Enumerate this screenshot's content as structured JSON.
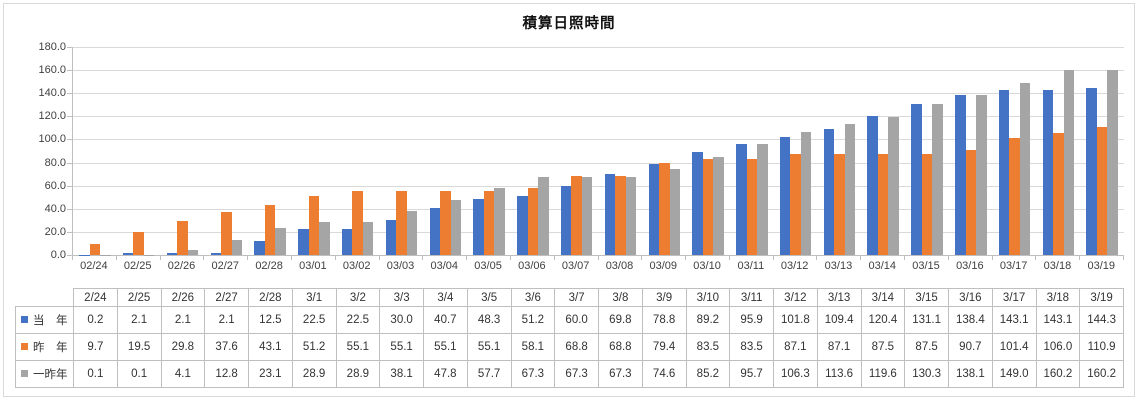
{
  "chart_data": {
    "type": "bar",
    "title": "積算日照時間",
    "xlabel": "",
    "ylabel": "",
    "ylim": [
      0,
      180
    ],
    "ytick_step": 20,
    "ytick_labels": [
      "0.0",
      "20.0",
      "40.0",
      "60.0",
      "80.0",
      "100.0",
      "120.0",
      "140.0",
      "160.0",
      "180.0"
    ],
    "grid": true,
    "legend_position": "table-left",
    "categories": [
      "02/24",
      "02/25",
      "02/26",
      "02/27",
      "02/28",
      "03/01",
      "03/02",
      "03/03",
      "03/04",
      "03/05",
      "03/06",
      "03/07",
      "03/08",
      "03/09",
      "03/10",
      "03/11",
      "03/12",
      "03/13",
      "03/14",
      "03/15",
      "03/16",
      "03/17",
      "03/18",
      "03/19"
    ],
    "table_categories": [
      "2/24",
      "2/25",
      "2/26",
      "2/27",
      "2/28",
      "3/1",
      "3/2",
      "3/3",
      "3/4",
      "3/5",
      "3/6",
      "3/7",
      "3/8",
      "3/9",
      "3/10",
      "3/11",
      "3/12",
      "3/13",
      "3/14",
      "3/15",
      "3/16",
      "3/17",
      "3/18",
      "3/19"
    ],
    "series": [
      {
        "id": "this-year",
        "name": "当　年",
        "color": "#4472C4",
        "values": [
          0.2,
          2.1,
          2.1,
          2.1,
          12.5,
          22.5,
          22.5,
          30.0,
          40.7,
          48.3,
          51.2,
          60.0,
          69.8,
          78.8,
          89.2,
          95.9,
          101.8,
          109.4,
          120.4,
          131.1,
          138.4,
          143.1,
          143.1,
          144.3
        ]
      },
      {
        "id": "last-year",
        "name": "昨　年",
        "color": "#ED7D31",
        "values": [
          9.7,
          19.5,
          29.8,
          37.6,
          43.1,
          51.2,
          55.1,
          55.1,
          55.1,
          55.1,
          58.1,
          68.8,
          68.8,
          79.4,
          83.5,
          83.5,
          87.1,
          87.1,
          87.5,
          87.5,
          90.7,
          101.4,
          106.0,
          110.9
        ]
      },
      {
        "id": "two-years-ago",
        "name": "一昨年",
        "color": "#A5A5A5",
        "values": [
          0.1,
          0.1,
          4.1,
          12.8,
          23.1,
          28.9,
          28.9,
          38.1,
          47.8,
          57.7,
          67.3,
          67.3,
          67.3,
          74.6,
          85.2,
          95.7,
          106.3,
          113.6,
          119.6,
          130.3,
          138.1,
          149.0,
          160.2,
          160.2
        ]
      }
    ],
    "colors": {
      "gridline": "#D9D9D9",
      "axis_line": "#BFBFBF",
      "table_border": "#BFBFBF",
      "frame_border": "#D9D9D9",
      "axis_text": "#404040",
      "title_text": "#111111"
    }
  }
}
